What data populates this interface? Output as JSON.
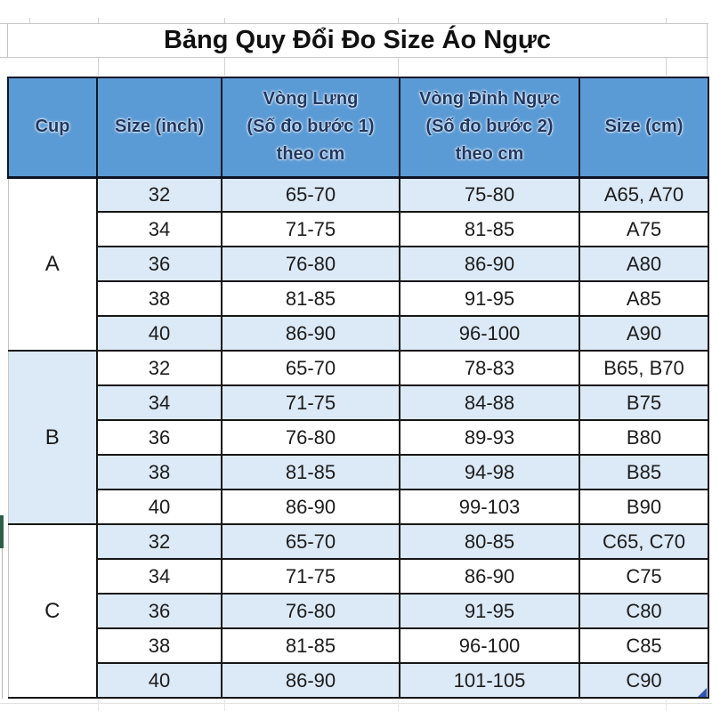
{
  "title": "Bảng Quy Đổi Đo Size Áo Ngực",
  "colors": {
    "header_bg": "#5b9bd5",
    "header_text": "#1f3864",
    "band_row_bg": "#dce9f6",
    "body_border": "#161616",
    "gridline_gray": "#c9c9c9",
    "green_marker": "#2e5f49",
    "fill_handle_blue": "#2f55b3"
  },
  "table": {
    "headers": [
      {
        "label": "Cup"
      },
      {
        "label": "Size (inch)"
      },
      {
        "label": "Vòng Lưng\n(Số đo bước 1)\ntheo cm"
      },
      {
        "label": "Vòng Đỉnh Ngực\n(Số đo bước 2)\ntheo cm"
      },
      {
        "label": "Size (cm)"
      }
    ],
    "groups": [
      {
        "cup": "A",
        "rows": [
          [
            "32",
            "65-70",
            "75-80",
            "A65, A70"
          ],
          [
            "34",
            "71-75",
            "81-85",
            "A75"
          ],
          [
            "36",
            "76-80",
            "86-90",
            "A80"
          ],
          [
            "38",
            "81-85",
            "91-95",
            "A85"
          ],
          [
            "40",
            "86-90",
            "96-100",
            "A90"
          ]
        ]
      },
      {
        "cup": "B",
        "rows": [
          [
            "32",
            "65-70",
            "78-83",
            "B65, B70"
          ],
          [
            "34",
            "71-75",
            "84-88",
            "B75"
          ],
          [
            "36",
            "76-80",
            "89-93",
            "B80"
          ],
          [
            "38",
            "81-85",
            "94-98",
            "B85"
          ],
          [
            "40",
            "86-90",
            "99-103",
            "B90"
          ]
        ]
      },
      {
        "cup": "C",
        "rows": [
          [
            "32",
            "65-70",
            "80-85",
            "C65, C70"
          ],
          [
            "34",
            "71-75",
            "86-90",
            "C75"
          ],
          [
            "36",
            "76-80",
            "91-95",
            "C80"
          ],
          [
            "38",
            "81-85",
            "96-100",
            "C85"
          ],
          [
            "40",
            "86-90",
            "101-105",
            "C90"
          ]
        ]
      }
    ]
  },
  "chart_data": {
    "type": "table",
    "title": "Bảng Quy Đổi Đo Size Áo Ngực",
    "columns": [
      "Cup",
      "Size (inch)",
      "Vòng Lưng (Số đo bước 1) theo cm",
      "Vòng Đỉnh Ngực (Số đo bước 2) theo cm",
      "Size (cm)"
    ],
    "rows": [
      [
        "A",
        "32",
        "65-70",
        "75-80",
        "A65, A70"
      ],
      [
        "A",
        "34",
        "71-75",
        "81-85",
        "A75"
      ],
      [
        "A",
        "36",
        "76-80",
        "86-90",
        "A80"
      ],
      [
        "A",
        "38",
        "81-85",
        "91-95",
        "A85"
      ],
      [
        "A",
        "40",
        "86-90",
        "96-100",
        "A90"
      ],
      [
        "B",
        "32",
        "65-70",
        "78-83",
        "B65, B70"
      ],
      [
        "B",
        "34",
        "71-75",
        "84-88",
        "B75"
      ],
      [
        "B",
        "36",
        "76-80",
        "89-93",
        "B80"
      ],
      [
        "B",
        "38",
        "81-85",
        "94-98",
        "B85"
      ],
      [
        "B",
        "40",
        "86-90",
        "99-103",
        "B90"
      ],
      [
        "C",
        "32",
        "65-70",
        "80-85",
        "C65, C70"
      ],
      [
        "C",
        "34",
        "71-75",
        "86-90",
        "C75"
      ],
      [
        "C",
        "36",
        "76-80",
        "91-95",
        "C80"
      ],
      [
        "C",
        "38",
        "81-85",
        "96-100",
        "C85"
      ],
      [
        "C",
        "40",
        "86-90",
        "101-105",
        "C90"
      ]
    ],
    "layout_hints": {
      "banded_rows": true,
      "cup_column_merged_per_group": true,
      "header_fill": "#5b9bd5"
    }
  }
}
